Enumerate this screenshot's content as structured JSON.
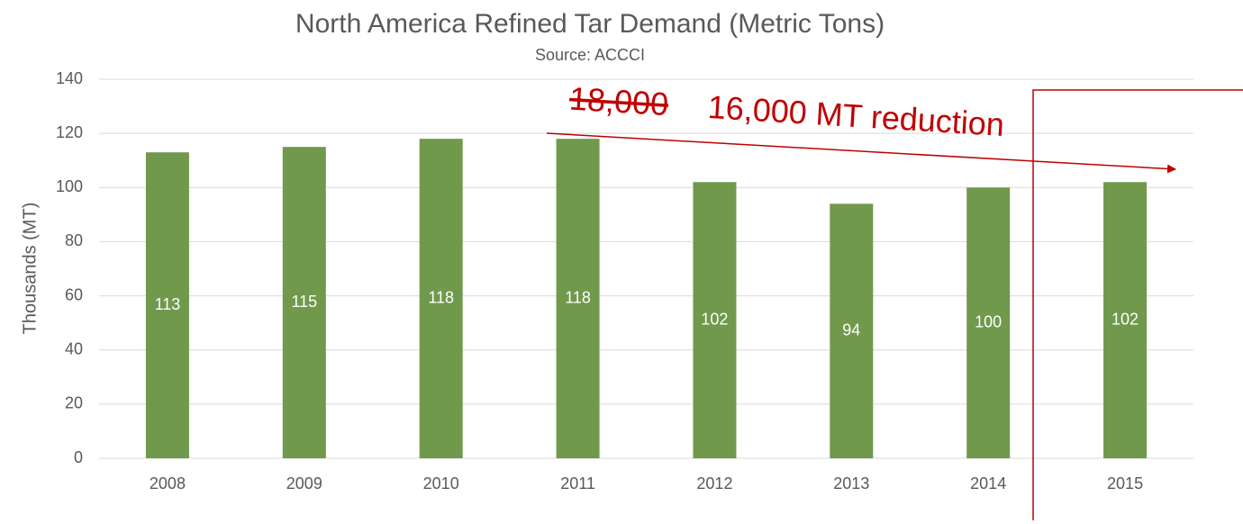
{
  "chart_data": {
    "type": "bar",
    "title": "North America Refined Tar Demand (Metric Tons)",
    "subtitle": "Source: ACCCI",
    "y_label": "Thousands (MT)",
    "categories": [
      "2008",
      "2009",
      "2010",
      "2011",
      "2012",
      "2013",
      "2014",
      "2015"
    ],
    "values": [
      113,
      115,
      118,
      118,
      102,
      94,
      100,
      102
    ],
    "color": "#70994c",
    "ylim": [
      0,
      140
    ],
    "yticks": [
      0,
      20,
      40,
      60,
      80,
      100,
      120,
      140
    ],
    "grid": true,
    "annotations": {
      "struck": "18,000",
      "text": "16,000 MT reduction"
    }
  }
}
